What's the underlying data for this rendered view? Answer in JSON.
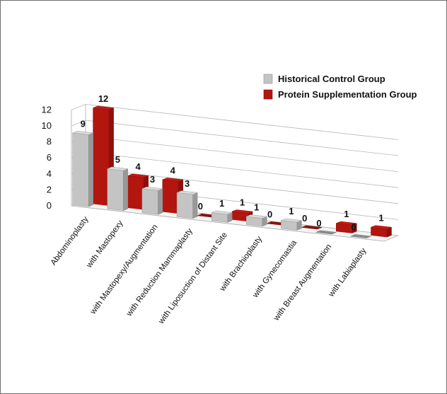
{
  "chart_data": {
    "type": "bar",
    "categories": [
      "Abdominoplasty",
      "with Mastopexy",
      "with Mastopexy/Augmentation",
      "with Reduction Mammaplasty",
      "with Liposuction of Distant Site",
      "with Brachioplasty",
      "with Gynecomastia",
      "with Breast Augmentation",
      "with Labiaplasty"
    ],
    "series": [
      {
        "name": "Historical Control Group",
        "values": [
          9,
          5,
          3,
          3,
          1,
          1,
          1,
          0,
          0
        ],
        "color": "#c4c4c4"
      },
      {
        "name": "Protein Supplementation Group",
        "values": [
          12,
          4,
          4,
          0,
          1,
          0,
          0,
          1,
          1
        ],
        "color": "#b3150f"
      }
    ],
    "y_ticks": [
      "0",
      "2",
      "4",
      "6",
      "8",
      "10",
      "12"
    ],
    "ylim": [
      0,
      12
    ],
    "grid": true,
    "legend_position": "top-right",
    "style": "3d-clustered-columns"
  }
}
